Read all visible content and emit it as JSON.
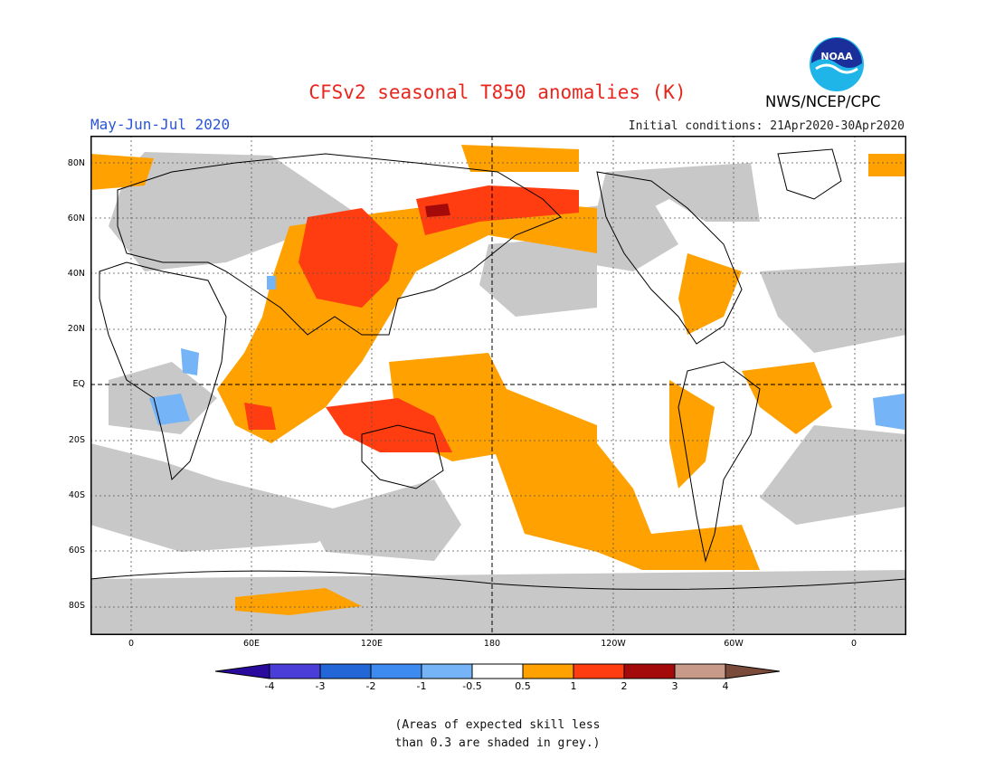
{
  "header": {
    "title": "CFSv2 seasonal T850 anomalies (K)",
    "season": "May-Jun-Jul 2020",
    "initial_conditions": "Initial conditions: 21Apr2020-30Apr2020",
    "agency": "NWS/NCEP/CPC",
    "logo_text": "NOAA"
  },
  "map": {
    "lat_labels": [
      "80N",
      "60N",
      "40N",
      "20N",
      "EQ",
      "20S",
      "40S",
      "60S",
      "80S"
    ],
    "lon_labels": [
      "0",
      "60E",
      "120E",
      "180",
      "120W",
      "60W",
      "0"
    ],
    "colors": {
      "grey_low_skill": "#c8c8c8",
      "anom_0_5_to_1": "#ffa100",
      "anom_1_to_2": "#ff3d10",
      "anom_2_to_3": "#a50a0a",
      "anom_neg_0_5_to_1": "#75b4f7"
    }
  },
  "colorbar": {
    "ticks": [
      "-4",
      "-3",
      "-2",
      "-1",
      "-0.5",
      "0.5",
      "1",
      "2",
      "3",
      "4"
    ],
    "colors": [
      "#2a0a9c",
      "#4b3ed8",
      "#2266d8",
      "#3d8af0",
      "#75b4f7",
      "#ffffff",
      "#ffa100",
      "#ff3d10",
      "#a50a0a",
      "#c89a8a",
      "#7a4a3a"
    ]
  },
  "note": {
    "line1": "(Areas of expected skill less",
    "line2": "than 0.3 are shaded in grey.)"
  }
}
